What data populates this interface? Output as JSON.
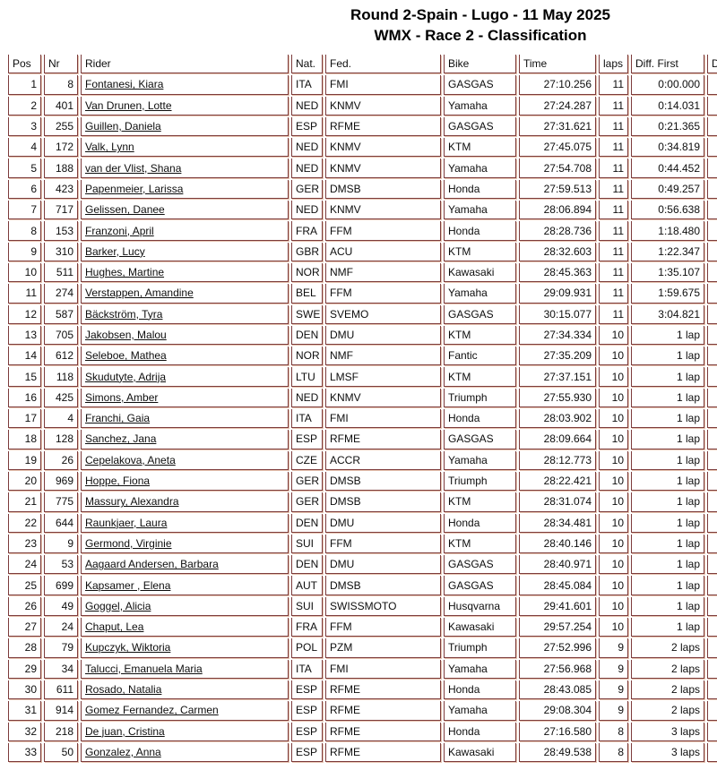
{
  "header": {
    "title_line1": "Round 2-Spain - Lugo - 11 May 2025",
    "title_line2": "WMX - Race 2 - Classification"
  },
  "colors": {
    "table_border": "#7c3b3b",
    "table_border_highlight": "#e3bda7",
    "text": "#000000"
  },
  "table": {
    "columns": [
      "Pos",
      "Nr",
      "Rider",
      "Nat.",
      "Fed.",
      "Bike",
      "Time",
      "laps",
      "Diff. First",
      "D"
    ],
    "cell_keys": [
      "pos",
      "nr",
      "rider",
      "nat",
      "fed",
      "bike",
      "time",
      "laps",
      "diff_first",
      "blank"
    ],
    "rows": [
      {
        "pos": "1",
        "nr": "8",
        "rider": "Fontanesi, Kiara",
        "nat": "ITA",
        "fed": "FMI",
        "bike": "GASGAS",
        "time": "27:10.256",
        "laps": "11",
        "diff_first": "0:00.000"
      },
      {
        "pos": "2",
        "nr": "401",
        "rider": "Van Drunen, Lotte",
        "nat": "NED",
        "fed": "KNMV",
        "bike": "Yamaha",
        "time": "27:24.287",
        "laps": "11",
        "diff_first": "0:14.031"
      },
      {
        "pos": "3",
        "nr": "255",
        "rider": "Guillen, Daniela",
        "nat": "ESP",
        "fed": "RFME",
        "bike": "GASGAS",
        "time": "27:31.621",
        "laps": "11",
        "diff_first": "0:21.365"
      },
      {
        "pos": "4",
        "nr": "172",
        "rider": "Valk, Lynn",
        "nat": "NED",
        "fed": "KNMV",
        "bike": "KTM",
        "time": "27:45.075",
        "laps": "11",
        "diff_first": "0:34.819"
      },
      {
        "pos": "5",
        "nr": "188",
        "rider": "van der Vlist, Shana",
        "nat": "NED",
        "fed": "KNMV",
        "bike": "Yamaha",
        "time": "27:54.708",
        "laps": "11",
        "diff_first": "0:44.452"
      },
      {
        "pos": "6",
        "nr": "423",
        "rider": "Papenmeier, Larissa",
        "nat": "GER",
        "fed": "DMSB",
        "bike": "Honda",
        "time": "27:59.513",
        "laps": "11",
        "diff_first": "0:49.257"
      },
      {
        "pos": "7",
        "nr": "717",
        "rider": "Gelissen, Danee",
        "nat": "NED",
        "fed": "KNMV",
        "bike": "Yamaha",
        "time": "28:06.894",
        "laps": "11",
        "diff_first": "0:56.638"
      },
      {
        "pos": "8",
        "nr": "153",
        "rider": "Franzoni, April",
        "nat": "FRA",
        "fed": "FFM",
        "bike": "Honda",
        "time": "28:28.736",
        "laps": "11",
        "diff_first": "1:18.480"
      },
      {
        "pos": "9",
        "nr": "310",
        "rider": "Barker, Lucy",
        "nat": "GBR",
        "fed": "ACU",
        "bike": "KTM",
        "time": "28:32.603",
        "laps": "11",
        "diff_first": "1:22.347"
      },
      {
        "pos": "10",
        "nr": "511",
        "rider": "Hughes, Martine",
        "nat": "NOR",
        "fed": "NMF",
        "bike": "Kawasaki",
        "time": "28:45.363",
        "laps": "11",
        "diff_first": "1:35.107"
      },
      {
        "pos": "11",
        "nr": "274",
        "rider": "Verstappen, Amandine",
        "nat": "BEL",
        "fed": "FFM",
        "bike": "Yamaha",
        "time": "29:09.931",
        "laps": "11",
        "diff_first": "1:59.675"
      },
      {
        "pos": "12",
        "nr": "587",
        "rider": "Bäckström, Tyra",
        "nat": "SWE",
        "fed": "SVEMO",
        "bike": "GASGAS",
        "time": "30:15.077",
        "laps": "11",
        "diff_first": "3:04.821"
      },
      {
        "pos": "13",
        "nr": "705",
        "rider": "Jakobsen, Malou",
        "nat": "DEN",
        "fed": "DMU",
        "bike": "KTM",
        "time": "27:34.334",
        "laps": "10",
        "diff_first": "1 lap"
      },
      {
        "pos": "14",
        "nr": "612",
        "rider": "Seleboe, Mathea",
        "nat": "NOR",
        "fed": "NMF",
        "bike": "Fantic",
        "time": "27:35.209",
        "laps": "10",
        "diff_first": "1 lap"
      },
      {
        "pos": "15",
        "nr": "118",
        "rider": "Skudutyte, Adrija",
        "nat": "LTU",
        "fed": "LMSF",
        "bike": "KTM",
        "time": "27:37.151",
        "laps": "10",
        "diff_first": "1 lap"
      },
      {
        "pos": "16",
        "nr": "425",
        "rider": "Simons, Amber",
        "nat": "NED",
        "fed": "KNMV",
        "bike": "Triumph",
        "time": "27:55.930",
        "laps": "10",
        "diff_first": "1 lap"
      },
      {
        "pos": "17",
        "nr": "4",
        "rider": "Franchi, Gaia",
        "nat": "ITA",
        "fed": "FMI",
        "bike": "Honda",
        "time": "28:03.902",
        "laps": "10",
        "diff_first": "1 lap"
      },
      {
        "pos": "18",
        "nr": "128",
        "rider": "Sanchez, Jana",
        "nat": "ESP",
        "fed": "RFME",
        "bike": "GASGAS",
        "time": "28:09.664",
        "laps": "10",
        "diff_first": "1 lap"
      },
      {
        "pos": "19",
        "nr": "26",
        "rider": "Cepelakova, Aneta",
        "nat": "CZE",
        "fed": "ACCR",
        "bike": "Yamaha",
        "time": "28:12.773",
        "laps": "10",
        "diff_first": "1 lap"
      },
      {
        "pos": "20",
        "nr": "969",
        "rider": "Hoppe, Fiona",
        "nat": "GER",
        "fed": "DMSB",
        "bike": "Triumph",
        "time": "28:22.421",
        "laps": "10",
        "diff_first": "1 lap"
      },
      {
        "pos": "21",
        "nr": "775",
        "rider": "Massury, Alexandra",
        "nat": "GER",
        "fed": "DMSB",
        "bike": "KTM",
        "time": "28:31.074",
        "laps": "10",
        "diff_first": "1 lap"
      },
      {
        "pos": "22",
        "nr": "644",
        "rider": "Raunkjaer, Laura",
        "nat": "DEN",
        "fed": "DMU",
        "bike": "Honda",
        "time": "28:34.481",
        "laps": "10",
        "diff_first": "1 lap"
      },
      {
        "pos": "23",
        "nr": "9",
        "rider": "Germond, Virginie",
        "nat": "SUI",
        "fed": "FFM",
        "bike": "KTM",
        "time": "28:40.146",
        "laps": "10",
        "diff_first": "1 lap"
      },
      {
        "pos": "24",
        "nr": "53",
        "rider": "Aagaard Andersen, Barbara",
        "nat": "DEN",
        "fed": "DMU",
        "bike": "GASGAS",
        "time": "28:40.971",
        "laps": "10",
        "diff_first": "1 lap"
      },
      {
        "pos": "25",
        "nr": "699",
        "rider": "Kapsamer , Elena",
        "nat": "AUT",
        "fed": "DMSB",
        "bike": "GASGAS",
        "time": "28:45.084",
        "laps": "10",
        "diff_first": "1 lap"
      },
      {
        "pos": "26",
        "nr": "49",
        "rider": "Goggel, Alicia",
        "nat": "SUI",
        "fed": "SWISSMOTO",
        "bike": "Husqvarna",
        "time": "29:41.601",
        "laps": "10",
        "diff_first": "1 lap"
      },
      {
        "pos": "27",
        "nr": "24",
        "rider": "Chaput, Lea",
        "nat": "FRA",
        "fed": "FFM",
        "bike": "Kawasaki",
        "time": "29:57.254",
        "laps": "10",
        "diff_first": "1 lap"
      },
      {
        "pos": "28",
        "nr": "79",
        "rider": "Kupczyk, Wiktoria",
        "nat": "POL",
        "fed": "PZM",
        "bike": "Triumph",
        "time": "27:52.996",
        "laps": "9",
        "diff_first": "2 laps"
      },
      {
        "pos": "29",
        "nr": "34",
        "rider": "Talucci, Emanuela Maria",
        "nat": "ITA",
        "fed": "FMI",
        "bike": "Yamaha",
        "time": "27:56.968",
        "laps": "9",
        "diff_first": "2 laps"
      },
      {
        "pos": "30",
        "nr": "611",
        "rider": "Rosado, Natalia",
        "nat": "ESP",
        "fed": "RFME",
        "bike": "Honda",
        "time": "28:43.085",
        "laps": "9",
        "diff_first": "2 laps"
      },
      {
        "pos": "31",
        "nr": "914",
        "rider": "Gomez Fernandez, Carmen",
        "nat": "ESP",
        "fed": "RFME",
        "bike": "Yamaha",
        "time": "29:08.304",
        "laps": "9",
        "diff_first": "2 laps"
      },
      {
        "pos": "32",
        "nr": "218",
        "rider": "De juan, Cristina",
        "nat": "ESP",
        "fed": "RFME",
        "bike": "Honda",
        "time": "27:16.580",
        "laps": "8",
        "diff_first": "3 laps"
      },
      {
        "pos": "33",
        "nr": "50",
        "rider": "Gonzalez, Anna",
        "nat": "ESP",
        "fed": "RFME",
        "bike": "Kawasaki",
        "time": "28:49.538",
        "laps": "8",
        "diff_first": "3 laps"
      }
    ]
  }
}
